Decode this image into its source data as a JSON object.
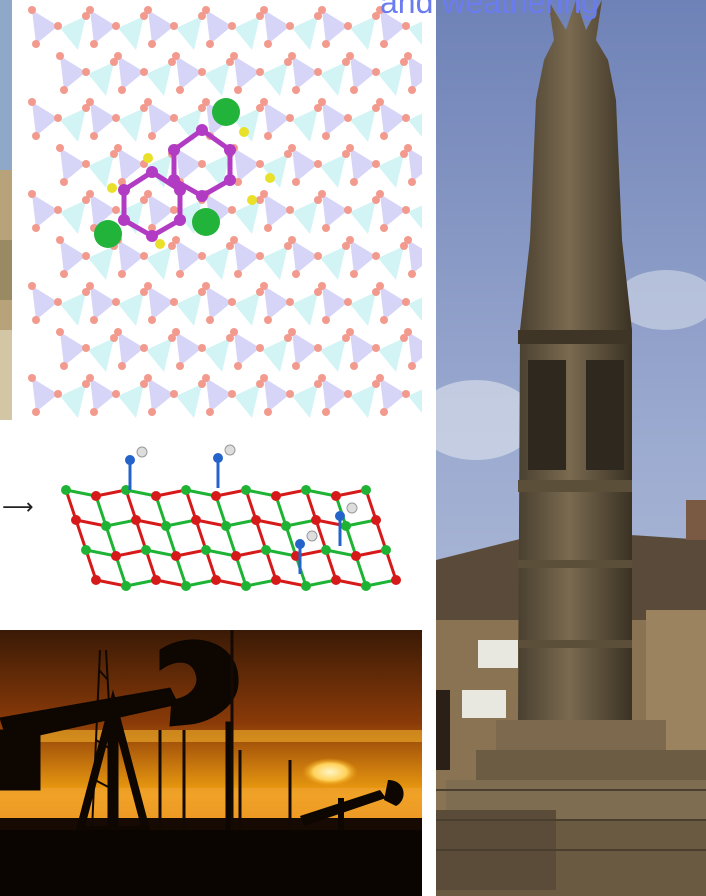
{
  "header": {
    "title_fragment": "and weathering"
  },
  "network": {
    "arrow": "⟶"
  },
  "colors": {
    "title": "#6a7cf0",
    "chlorine": "#22b33a",
    "carbon": "#b23bc4",
    "hydrogen": "#e9e02a",
    "oxygen": "#f29a8d",
    "tetrahedron_purple": "#b7b3f0",
    "tetrahedron_cyan": "#b6ecee",
    "network_red": "#d61a1a",
    "network_green": "#1fb335",
    "network_blue": "#2463c9",
    "sunset": "#f2a318",
    "sky": "#8a9cc8"
  }
}
